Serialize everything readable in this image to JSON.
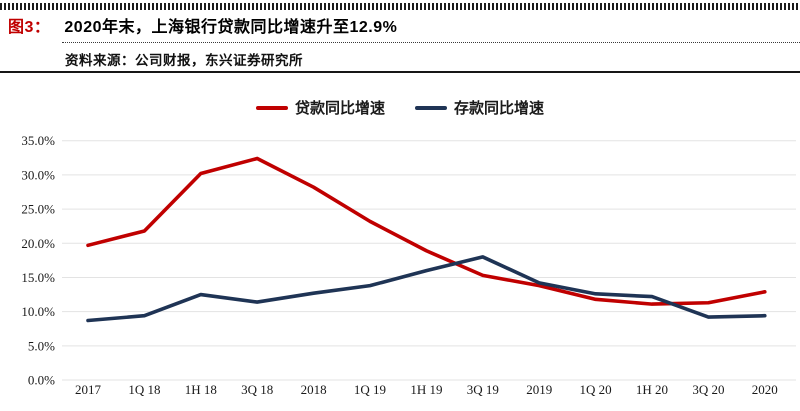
{
  "figure": {
    "label": "图3：",
    "title": "2020年末，上海银行贷款同比增速升至12.9%",
    "source": "资料来源：公司财报，东兴证券研究所"
  },
  "colors": {
    "accent_red": "#c00000",
    "navy": "#1f3455",
    "grid": "#e3e3e3",
    "text": "#1a1a1a"
  },
  "chart_data": {
    "type": "line",
    "categories": [
      "2017",
      "1Q 18",
      "1H 18",
      "3Q 18",
      "2018",
      "1Q 19",
      "1H 19",
      "3Q 19",
      "2019",
      "1Q 20",
      "1H 20",
      "3Q 20",
      "2020"
    ],
    "series": [
      {
        "name": "贷款同比增速",
        "color": "#c00000",
        "values": [
          19.7,
          21.8,
          30.2,
          32.4,
          28.2,
          23.2,
          18.9,
          15.3,
          13.8,
          11.8,
          11.1,
          11.3,
          12.9
        ]
      },
      {
        "name": "存款同比增速",
        "color": "#1f3455",
        "values": [
          8.7,
          9.4,
          12.5,
          11.4,
          12.7,
          13.8,
          16.0,
          18.0,
          14.2,
          12.6,
          12.2,
          9.2,
          9.4
        ]
      }
    ],
    "ylabel": "",
    "xlabel": "",
    "ylim": [
      0,
      35
    ],
    "ytick_step": 5,
    "ytick_labels": [
      "0.0%",
      "5.0%",
      "10.0%",
      "15.0%",
      "20.0%",
      "25.0%",
      "30.0%",
      "35.0%"
    ],
    "grid": true,
    "legend_position": "top-center"
  }
}
